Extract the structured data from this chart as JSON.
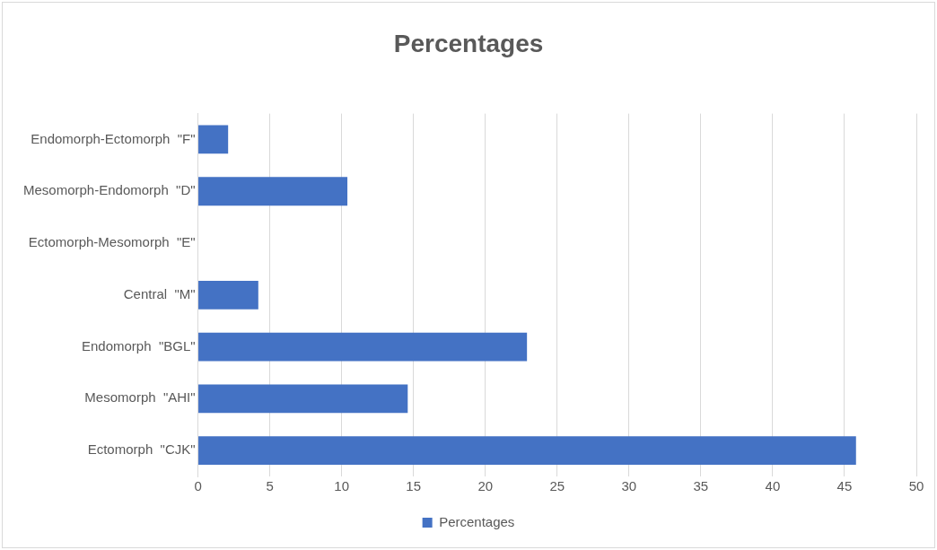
{
  "chart_data": {
    "type": "bar",
    "orientation": "horizontal",
    "title": "Percentages",
    "categories": [
      "Endomorph-Ectomorph  \"F\"",
      "Mesomorph-Endomorph  \"D\"",
      "Ectomorph-Mesomorph  \"E\"",
      "Central  \"M\"",
      "Endomorph  \"BGL\"",
      "Mesomorph  \"AHI\"",
      "Ectomorph  \"CJK\""
    ],
    "series": [
      {
        "name": "Percentages",
        "color": "#4472c4",
        "values": [
          2.1,
          10.4,
          0,
          4.2,
          22.9,
          14.6,
          45.8
        ]
      }
    ],
    "xlim": [
      0,
      50
    ],
    "xticks": [
      0,
      5,
      10,
      15,
      20,
      25,
      30,
      35,
      40,
      45,
      50
    ],
    "grid": "x",
    "legend": "bottom"
  }
}
